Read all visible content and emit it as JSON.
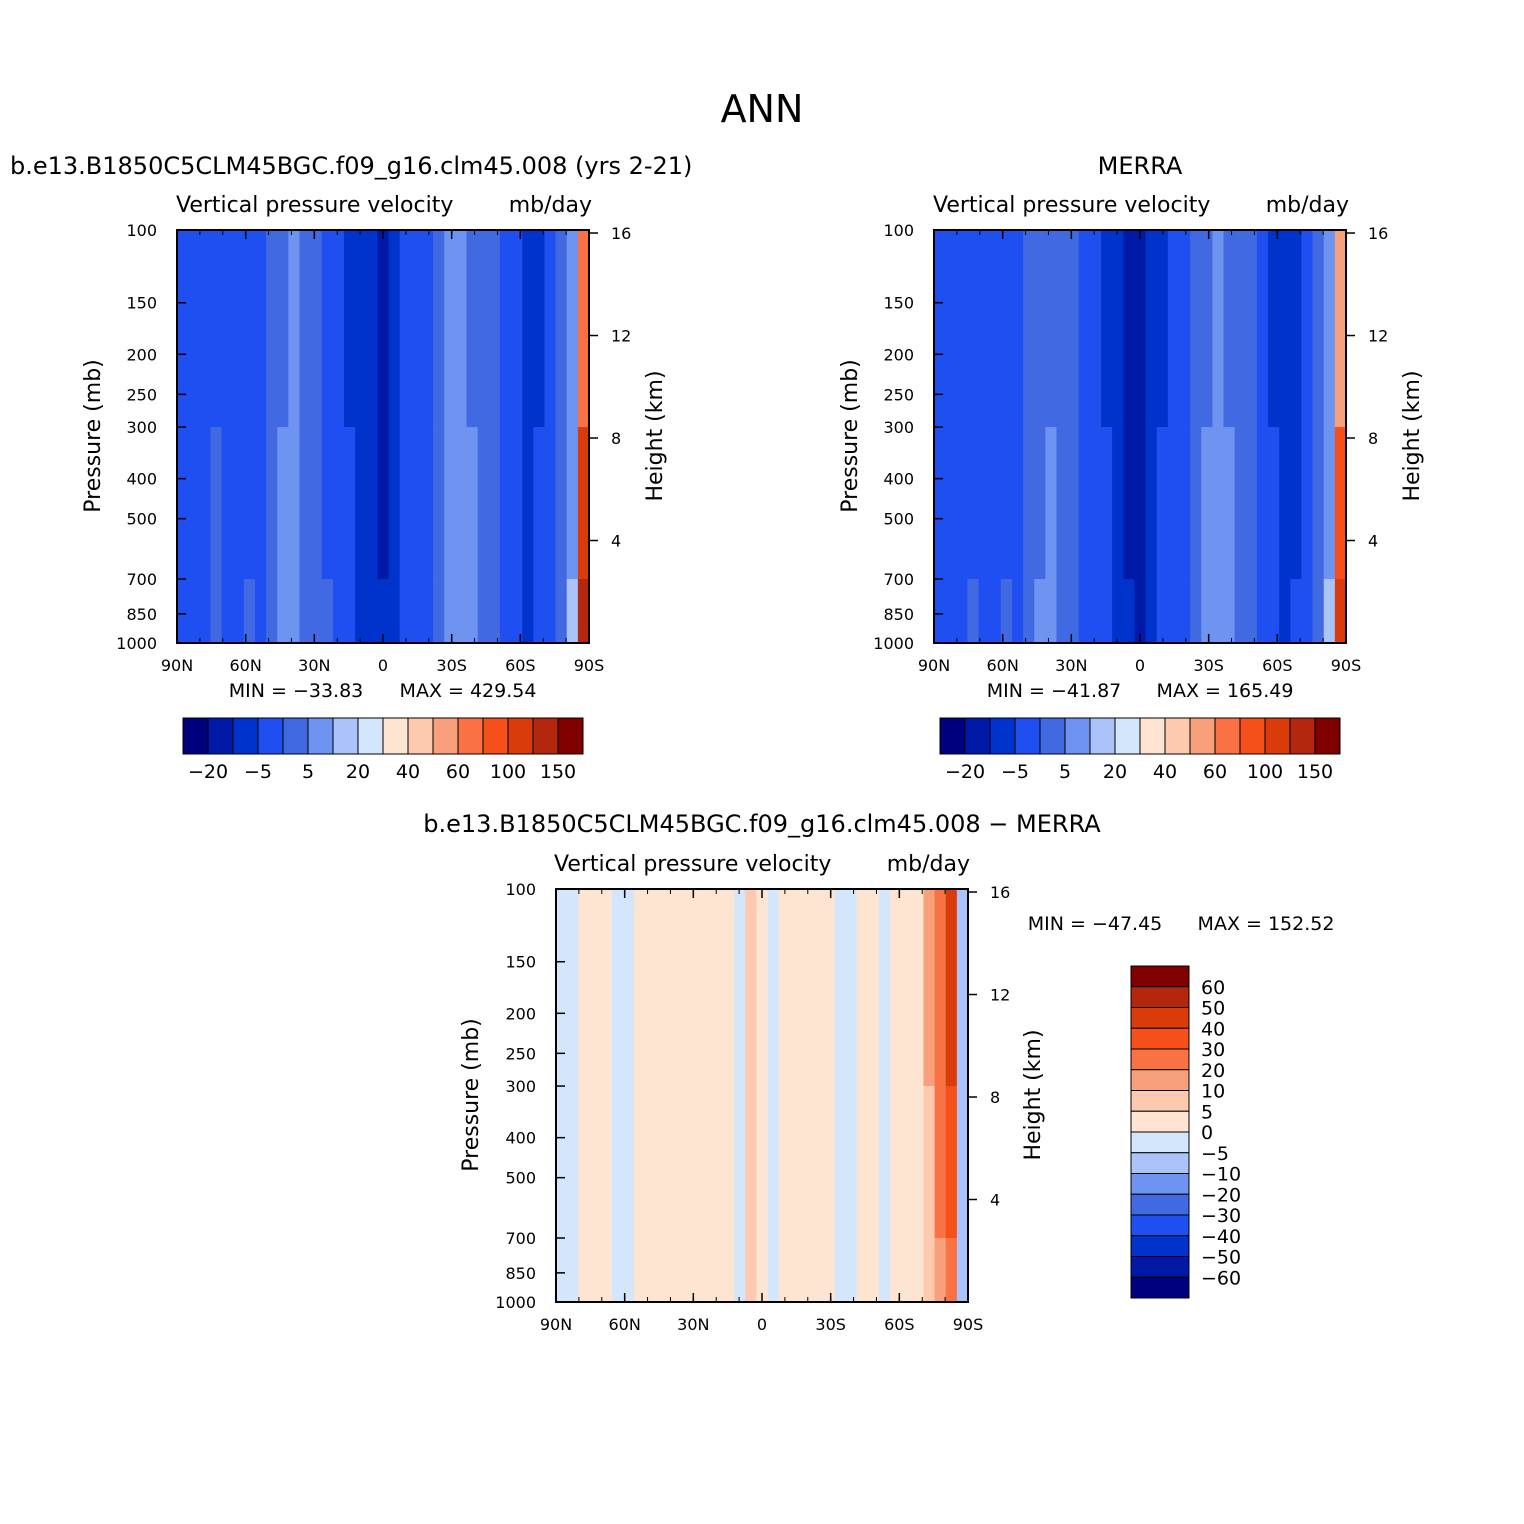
{
  "page_title": "ANN",
  "colors": {
    "scale": [
      "#00007f",
      "#0019a6",
      "#0033cc",
      "#1f4ff0",
      "#4169e1",
      "#6e93f0",
      "#aac4fa",
      "#d4e6fc",
      "#fde5d2",
      "#fdcab0",
      "#f8a07c",
      "#f87243",
      "#f54f1a",
      "#d93c0a",
      "#b3270e",
      "#800000"
    ],
    "diff_scale": [
      "#00007f",
      "#0019a6",
      "#0033cc",
      "#1f4ff0",
      "#4169e1",
      "#6e93f0",
      "#aac4fa",
      "#d4e6fc",
      "#fde5d2",
      "#fdcab0",
      "#f8a07c",
      "#f87243",
      "#f54f1a",
      "#d93c0a",
      "#b3270e",
      "#800000"
    ]
  },
  "chart_data": [
    {
      "type": "heatmap",
      "title": "b.e13.B1850C5CLM45BGC.f09_g16.clm45.008 (yrs 2-21)",
      "subtitle_left": "Vertical pressure velocity",
      "subtitle_right": "mb/day",
      "xlabel": "",
      "ylabel": "Pressure (mb)",
      "y2label": "Height (km)",
      "x_ticks": [
        "90N",
        "60N",
        "30N",
        "0",
        "30S",
        "60S",
        "90S"
      ],
      "y_ticks": [
        100,
        150,
        200,
        250,
        300,
        400,
        500,
        700,
        850,
        1000
      ],
      "y2_ticks": [
        16,
        12,
        8,
        4
      ],
      "y_scale": "log",
      "stats": {
        "min_label": "MIN = −33.83",
        "max_label": "MAX = 429.54"
      },
      "colorbar_labels": [
        "−20",
        "−5",
        "5",
        "20",
        "40",
        "60",
        "100",
        "150"
      ],
      "levels": [
        -50,
        -40,
        -30,
        -20,
        -10,
        -5,
        0,
        5,
        10,
        20,
        30,
        40,
        60,
        80,
        100,
        150,
        200
      ],
      "values": [
        [
          -16,
          -18,
          -20,
          -12,
          -14,
          -15,
          -13,
          -15,
          -9,
          -6,
          -5,
          -8,
          -8,
          -12,
          -14,
          -22,
          -28,
          -30,
          -34,
          -26,
          -20,
          -18,
          -14,
          -10,
          -5,
          -3,
          -6,
          -8,
          -10,
          -16,
          -20,
          -26,
          -22,
          -16,
          -10,
          -4,
          40
        ],
        [
          -14,
          -16,
          -18,
          -10,
          -12,
          -13,
          -11,
          -13,
          -8,
          -5,
          -4,
          -7,
          -7,
          -11,
          -13,
          -20,
          -26,
          -28,
          -32,
          -24,
          -18,
          -16,
          -12,
          -8,
          -4,
          -2,
          -5,
          -7,
          -9,
          -14,
          -18,
          -24,
          -20,
          -14,
          -8,
          -2,
          80
        ],
        [
          -12,
          -14,
          -16,
          -9,
          -11,
          -12,
          -10,
          -12,
          -7,
          -4,
          -3,
          -6,
          -6,
          -10,
          -12,
          -18,
          -24,
          -26,
          -30,
          -22,
          -16,
          -14,
          -11,
          -7,
          -3,
          -1,
          -4,
          -6,
          -8,
          -12,
          -16,
          -22,
          -18,
          -12,
          -6,
          0,
          120
        ]
      ]
    },
    {
      "type": "heatmap",
      "title": "MERRA",
      "subtitle_left": "Vertical pressure velocity",
      "subtitle_right": "mb/day",
      "xlabel": "",
      "ylabel": "Pressure (mb)",
      "y2label": "Height (km)",
      "x_ticks": [
        "90N",
        "60N",
        "30N",
        "0",
        "30S",
        "60S",
        "90S"
      ],
      "y_ticks": [
        100,
        150,
        200,
        250,
        300,
        400,
        500,
        700,
        850,
        1000
      ],
      "y2_ticks": [
        16,
        12,
        8,
        4
      ],
      "y_scale": "log",
      "stats": {
        "min_label": "MIN = −41.87",
        "max_label": "MAX = 165.49"
      },
      "colorbar_labels": [
        "−20",
        "−5",
        "5",
        "20",
        "40",
        "60",
        "100",
        "150"
      ],
      "levels": [
        -50,
        -40,
        -30,
        -20,
        -10,
        -5,
        0,
        5,
        10,
        20,
        30,
        40,
        60,
        80,
        100,
        150,
        200
      ],
      "values": [
        [
          -16,
          -18,
          -20,
          -14,
          -14,
          -15,
          -13,
          -15,
          -9,
          -7,
          -6,
          -8,
          -9,
          -13,
          -15,
          -22,
          -30,
          -34,
          -40,
          -28,
          -22,
          -18,
          -14,
          -10,
          -6,
          -4,
          -6,
          -8,
          -10,
          -16,
          -22,
          -28,
          -24,
          -16,
          -10,
          -4,
          30
        ],
        [
          -14,
          -16,
          -18,
          -12,
          -12,
          -13,
          -11,
          -13,
          -8,
          -6,
          -5,
          -7,
          -8,
          -12,
          -14,
          -20,
          -28,
          -32,
          -38,
          -26,
          -20,
          -16,
          -12,
          -8,
          -5,
          -3,
          -5,
          -7,
          -9,
          -14,
          -20,
          -26,
          -22,
          -14,
          -8,
          -2,
          60
        ],
        [
          -12,
          -14,
          -16,
          -10,
          -11,
          -12,
          -10,
          -12,
          -7,
          -5,
          -4,
          -6,
          -7,
          -11,
          -13,
          -18,
          -26,
          -30,
          -36,
          -24,
          -18,
          -14,
          -11,
          -7,
          -4,
          -2,
          -4,
          -6,
          -8,
          -12,
          -18,
          -24,
          -20,
          -12,
          -6,
          0,
          90
        ]
      ]
    },
    {
      "type": "heatmap",
      "title": "b.e13.B1850C5CLM45BGC.f09_g16.clm45.008 − MERRA",
      "subtitle_left": "Vertical pressure velocity",
      "subtitle_right": "mb/day",
      "xlabel": "",
      "ylabel": "Pressure (mb)",
      "y2label": "Height (km)",
      "x_ticks": [
        "90N",
        "60N",
        "30N",
        "0",
        "30S",
        "60S",
        "90S"
      ],
      "y_ticks": [
        100,
        150,
        200,
        250,
        300,
        400,
        500,
        700,
        850,
        1000
      ],
      "y2_ticks": [
        16,
        12,
        8,
        4
      ],
      "y_scale": "log",
      "stats": {
        "min_label": "MIN = −47.45",
        "max_label": "MAX = 152.52"
      },
      "colorbar_labels": [
        "60",
        "50",
        "40",
        "30",
        "20",
        "10",
        "5",
        "0",
        "−5",
        "−10",
        "−20",
        "−30",
        "−40",
        "−50",
        "−60"
      ],
      "levels": [
        -70,
        -60,
        -50,
        -40,
        -30,
        -20,
        -10,
        -5,
        0,
        5,
        10,
        20,
        30,
        40,
        50,
        60,
        70
      ],
      "values": [
        [
          -2,
          -1,
          1,
          2,
          1,
          -1,
          -2,
          1,
          2,
          3,
          2,
          1,
          1,
          3,
          4,
          1,
          -2,
          6,
          2,
          -3,
          1,
          2,
          4,
          3,
          1,
          -1,
          -2,
          1,
          2,
          -1,
          1,
          3,
          4,
          10,
          25,
          45,
          -10
        ],
        [
          -2,
          -1,
          1,
          2,
          1,
          -1,
          -2,
          1,
          2,
          3,
          2,
          1,
          1,
          3,
          4,
          1,
          -2,
          6,
          2,
          -3,
          1,
          2,
          4,
          3,
          1,
          -1,
          -2,
          1,
          2,
          -1,
          1,
          3,
          4,
          8,
          20,
          35,
          -8
        ],
        [
          -2,
          -1,
          1,
          2,
          1,
          -1,
          -2,
          1,
          2,
          3,
          2,
          1,
          1,
          3,
          4,
          1,
          -2,
          6,
          2,
          -3,
          1,
          2,
          4,
          3,
          1,
          -1,
          -2,
          1,
          2,
          -1,
          1,
          3,
          4,
          6,
          15,
          25,
          -6
        ]
      ]
    }
  ]
}
